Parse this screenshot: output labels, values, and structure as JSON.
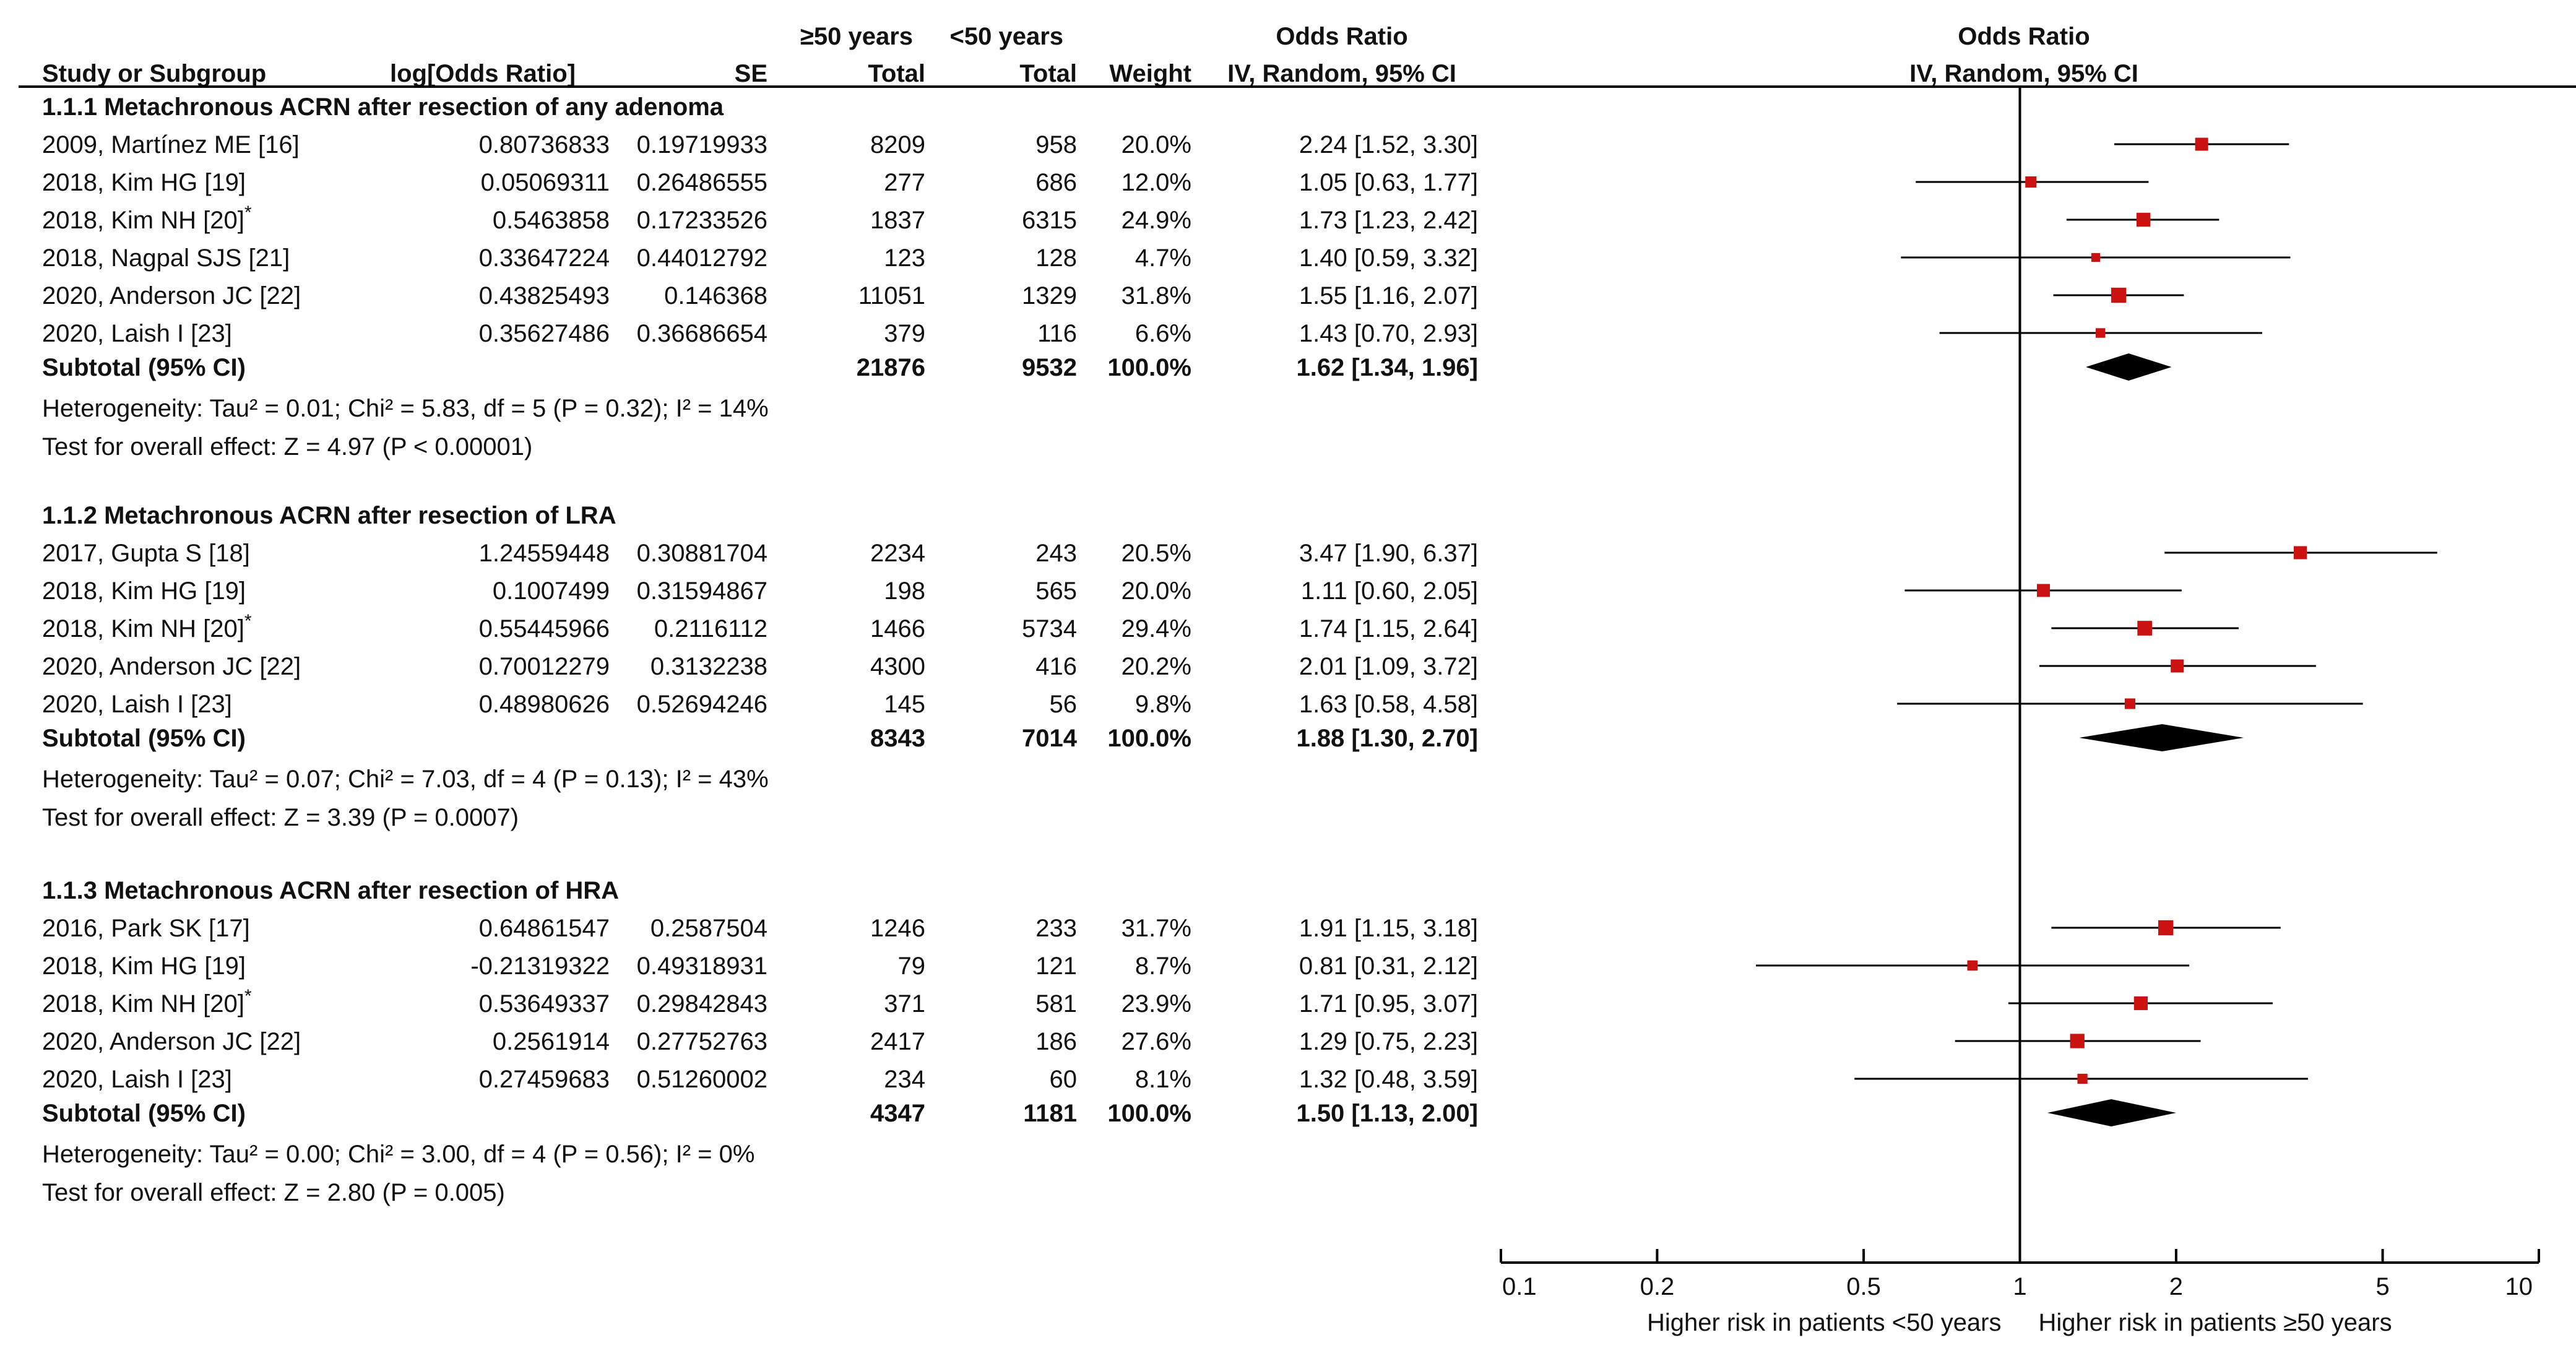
{
  "header": {
    "col_study": "Study or Subgroup",
    "col_log_or": "log[Odds Ratio]",
    "col_se": "SE",
    "group_ge50": "≥50 years",
    "group_lt50": "<50 years",
    "col_total_ge50": "Total",
    "col_total_lt50": "Total",
    "col_weight": "Weight",
    "col_or_title": "Odds Ratio",
    "col_or_method": "IV, Random, 95% CI",
    "plot_title": "Odds Ratio",
    "plot_method": "IV, Random, 95% CI"
  },
  "colors": {
    "marker": "#cc1111",
    "diamond": "#000000",
    "line": "#000000"
  },
  "chart_data": {
    "type": "forest",
    "x_scale": "log",
    "xlim": [
      0.1,
      10
    ],
    "null_value": 1,
    "ticks": [
      {
        "value": 0.1,
        "label": "0.1"
      },
      {
        "value": 0.2,
        "label": "0.2"
      },
      {
        "value": 0.5,
        "label": "0.5"
      },
      {
        "value": 1,
        "label": "1"
      },
      {
        "value": 2,
        "label": "2"
      },
      {
        "value": 5,
        "label": "5"
      },
      {
        "value": 10,
        "label": "10"
      }
    ],
    "footer_left": "Higher risk in patients <50 years",
    "footer_right": "Higher risk in patients ≥50 years",
    "groups": [
      {
        "title": "1.1.1 Metachronous ACRN after resection of any adenoma",
        "studies": [
          {
            "name": "2009, Martínez ME [16]",
            "log_or": "0.80736833",
            "se": "0.19719933",
            "total_ge50": "8209",
            "total_lt50": "958",
            "weight": "20.0%",
            "weight_pct": 20.0,
            "or_text": "2.24 [1.52, 3.30]",
            "or": 2.24,
            "lo": 1.52,
            "hi": 3.3
          },
          {
            "name": "2018, Kim HG [19]",
            "log_or": "0.05069311",
            "se": "0.26486555",
            "total_ge50": "277",
            "total_lt50": "686",
            "weight": "12.0%",
            "weight_pct": 12.0,
            "or_text": "1.05 [0.63, 1.77]",
            "or": 1.05,
            "lo": 0.63,
            "hi": 1.77
          },
          {
            "name": "2018, Kim NH [20]",
            "mark": "*",
            "log_or": "0.5463858",
            "se": "0.17233526",
            "total_ge50": "1837",
            "total_lt50": "6315",
            "weight": "24.9%",
            "weight_pct": 24.9,
            "or_text": "1.73 [1.23, 2.42]",
            "or": 1.73,
            "lo": 1.23,
            "hi": 2.42
          },
          {
            "name": "2018, Nagpal SJS [21]",
            "log_or": "0.33647224",
            "se": "0.44012792",
            "total_ge50": "123",
            "total_lt50": "128",
            "weight": "4.7%",
            "weight_pct": 4.7,
            "or_text": "1.40 [0.59, 3.32]",
            "or": 1.4,
            "lo": 0.59,
            "hi": 3.32
          },
          {
            "name": "2020, Anderson JC [22]",
            "log_or": "0.43825493",
            "se": "0.146368",
            "total_ge50": "11051",
            "total_lt50": "1329",
            "weight": "31.8%",
            "weight_pct": 31.8,
            "or_text": "1.55 [1.16, 2.07]",
            "or": 1.55,
            "lo": 1.16,
            "hi": 2.07
          },
          {
            "name": "2020, Laish I [23]",
            "log_or": "0.35627486",
            "se": "0.36686654",
            "total_ge50": "379",
            "total_lt50": "116",
            "weight": "6.6%",
            "weight_pct": 6.6,
            "or_text": "1.43 [0.70, 2.93]",
            "or": 1.43,
            "lo": 0.7,
            "hi": 2.93
          }
        ],
        "subtotal": {
          "label": "Subtotal (95% CI)",
          "total_ge50": "21876",
          "total_lt50": "9532",
          "weight": "100.0%",
          "or_text": "1.62 [1.34, 1.96]",
          "or": 1.62,
          "lo": 1.34,
          "hi": 1.96
        },
        "heterogeneity": "Heterogeneity: Tau² = 0.01; Chi² = 5.83, df = 5 (P = 0.32); I² = 14%",
        "overall": "Test for overall effect: Z = 4.97 (P < 0.00001)"
      },
      {
        "title": "1.1.2 Metachronous ACRN after resection of LRA",
        "studies": [
          {
            "name": "2017, Gupta S [18]",
            "log_or": "1.24559448",
            "se": "0.30881704",
            "total_ge50": "2234",
            "total_lt50": "243",
            "weight": "20.5%",
            "weight_pct": 20.5,
            "or_text": "3.47 [1.90, 6.37]",
            "or": 3.47,
            "lo": 1.9,
            "hi": 6.37
          },
          {
            "name": "2018, Kim HG [19]",
            "log_or": "0.1007499",
            "se": "0.31594867",
            "total_ge50": "198",
            "total_lt50": "565",
            "weight": "20.0%",
            "weight_pct": 20.0,
            "or_text": "1.11 [0.60, 2.05]",
            "or": 1.11,
            "lo": 0.6,
            "hi": 2.05
          },
          {
            "name": "2018, Kim NH [20]",
            "mark": "*",
            "log_or": "0.55445966",
            "se": "0.2116112",
            "total_ge50": "1466",
            "total_lt50": "5734",
            "weight": "29.4%",
            "weight_pct": 29.4,
            "or_text": "1.74 [1.15, 2.64]",
            "or": 1.74,
            "lo": 1.15,
            "hi": 2.64
          },
          {
            "name": "2020, Anderson JC [22]",
            "log_or": "0.70012279",
            "se": "0.3132238",
            "total_ge50": "4300",
            "total_lt50": "416",
            "weight": "20.2%",
            "weight_pct": 20.2,
            "or_text": "2.01 [1.09, 3.72]",
            "or": 2.01,
            "lo": 1.09,
            "hi": 3.72
          },
          {
            "name": "2020, Laish I [23]",
            "log_or": "0.48980626",
            "se": "0.52694246",
            "total_ge50": "145",
            "total_lt50": "56",
            "weight": "9.8%",
            "weight_pct": 9.8,
            "or_text": "1.63 [0.58, 4.58]",
            "or": 1.63,
            "lo": 0.58,
            "hi": 4.58
          }
        ],
        "subtotal": {
          "label": "Subtotal (95% CI)",
          "total_ge50": "8343",
          "total_lt50": "7014",
          "weight": "100.0%",
          "or_text": "1.88 [1.30, 2.70]",
          "or": 1.88,
          "lo": 1.3,
          "hi": 2.7
        },
        "heterogeneity": "Heterogeneity: Tau² = 0.07; Chi² = 7.03, df = 4 (P = 0.13); I² = 43%",
        "overall": "Test for overall effect: Z = 3.39 (P = 0.0007)"
      },
      {
        "title": "1.1.3 Metachronous ACRN after resection of HRA",
        "studies": [
          {
            "name": "2016, Park SK [17]",
            "log_or": "0.64861547",
            "se": "0.2587504",
            "total_ge50": "1246",
            "total_lt50": "233",
            "weight": "31.7%",
            "weight_pct": 31.7,
            "or_text": "1.91 [1.15, 3.18]",
            "or": 1.91,
            "lo": 1.15,
            "hi": 3.18
          },
          {
            "name": "2018, Kim HG [19]",
            "log_or": "-0.21319322",
            "se": "0.49318931",
            "total_ge50": "79",
            "total_lt50": "121",
            "weight": "8.7%",
            "weight_pct": 8.7,
            "or_text": "0.81 [0.31, 2.12]",
            "or": 0.81,
            "lo": 0.31,
            "hi": 2.12
          },
          {
            "name": "2018, Kim NH [20]",
            "mark": "*",
            "log_or": "0.53649337",
            "se": "0.29842843",
            "total_ge50": "371",
            "total_lt50": "581",
            "weight": "23.9%",
            "weight_pct": 23.9,
            "or_text": "1.71 [0.95, 3.07]",
            "or": 1.71,
            "lo": 0.95,
            "hi": 3.07
          },
          {
            "name": "2020, Anderson JC [22]",
            "log_or": "0.2561914",
            "se": "0.27752763",
            "total_ge50": "2417",
            "total_lt50": "186",
            "weight": "27.6%",
            "weight_pct": 27.6,
            "or_text": "1.29 [0.75, 2.23]",
            "or": 1.29,
            "lo": 0.75,
            "hi": 2.23
          },
          {
            "name": "2020, Laish I [23]",
            "log_or": "0.27459683",
            "se": "0.51260002",
            "total_ge50": "234",
            "total_lt50": "60",
            "weight": "8.1%",
            "weight_pct": 8.1,
            "or_text": "1.32 [0.48, 3.59]",
            "or": 1.32,
            "lo": 0.48,
            "hi": 3.59
          }
        ],
        "subtotal": {
          "label": "Subtotal (95% CI)",
          "total_ge50": "4347",
          "total_lt50": "1181",
          "weight": "100.0%",
          "or_text": "1.50 [1.13, 2.00]",
          "or": 1.5,
          "lo": 1.13,
          "hi": 2.0
        },
        "heterogeneity": "Heterogeneity: Tau² = 0.00; Chi² = 3.00, df = 4 (P = 0.56); I² = 0%",
        "overall": "Test for overall effect: Z = 2.80 (P = 0.005)"
      }
    ]
  }
}
